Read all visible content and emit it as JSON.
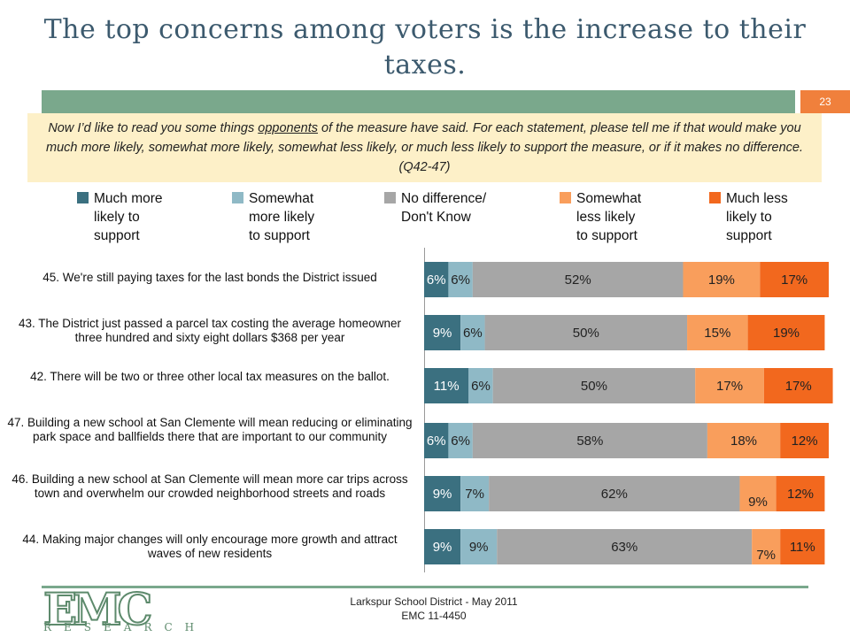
{
  "slide": {
    "title": "The top concerns among voters is the increase to their taxes.",
    "page_number": "23",
    "intro_before": "Now I’d like to read you some things ",
    "intro_underlined": "opponents",
    "intro_after": " of the measure have said.  For each statement, please tell me if that would make you much more likely, somewhat more likely, somewhat less likely, or much less likely to support the measure, or if it makes no difference. (Q42-47)",
    "footer_line1": "Larkspur School District - May 2011",
    "footer_line2": "EMC 11-4450",
    "logo_main": "EMC",
    "logo_sub": "RESEARCH"
  },
  "chart_data": {
    "type": "bar",
    "orientation": "horizontal",
    "stacked": true,
    "xlim": [
      0,
      100
    ],
    "categories": [
      "45. We're still paying taxes for the last bonds the District issued",
      "43. The District just passed a parcel tax costing the average homeowner three hundred and sixty eight dollars $368 per year",
      "42. There will be two or three other local tax measures on the ballot.",
      "47. Building a new school at San Clemente will mean reducing or eliminating park space and ballfields there that are important to our community",
      "46. Building a new school at San Clemente will mean more car trips across town and overwhelm our crowded neighborhood streets and roads",
      "44. Making major changes will only encourage more growth and attract waves of new residents"
    ],
    "series": [
      {
        "name": "Much more likely to support",
        "color": "#3b7080",
        "label_color": "#ffffff",
        "values": [
          6,
          9,
          11,
          6,
          9,
          9
        ]
      },
      {
        "name": "Somewhat more likely to support",
        "color": "#8fb9c6",
        "label_color": "#222222",
        "values": [
          6,
          6,
          6,
          6,
          7,
          9
        ]
      },
      {
        "name": "No difference/ Don't Know",
        "color": "#a6a6a6",
        "label_color": "#222222",
        "values": [
          52,
          50,
          50,
          58,
          62,
          63
        ]
      },
      {
        "name": "Somewhat less likely to support",
        "color": "#f99e5c",
        "label_color": "#222222",
        "values": [
          19,
          15,
          17,
          18,
          9,
          7
        ]
      },
      {
        "name": "Much less likely to support",
        "color": "#f2681e",
        "label_color": "#222222",
        "values": [
          17,
          19,
          17,
          12,
          12,
          11
        ]
      }
    ],
    "legend_labels": [
      "Much more\nlikely to\nsupport",
      "Somewhat\nmore likely\nto support",
      "No difference/\nDon't Know",
      "Somewhat\nless likely\nto support",
      "Much less\nlikely to\nsupport"
    ],
    "value_suffix": "%",
    "legend_position": "top"
  }
}
